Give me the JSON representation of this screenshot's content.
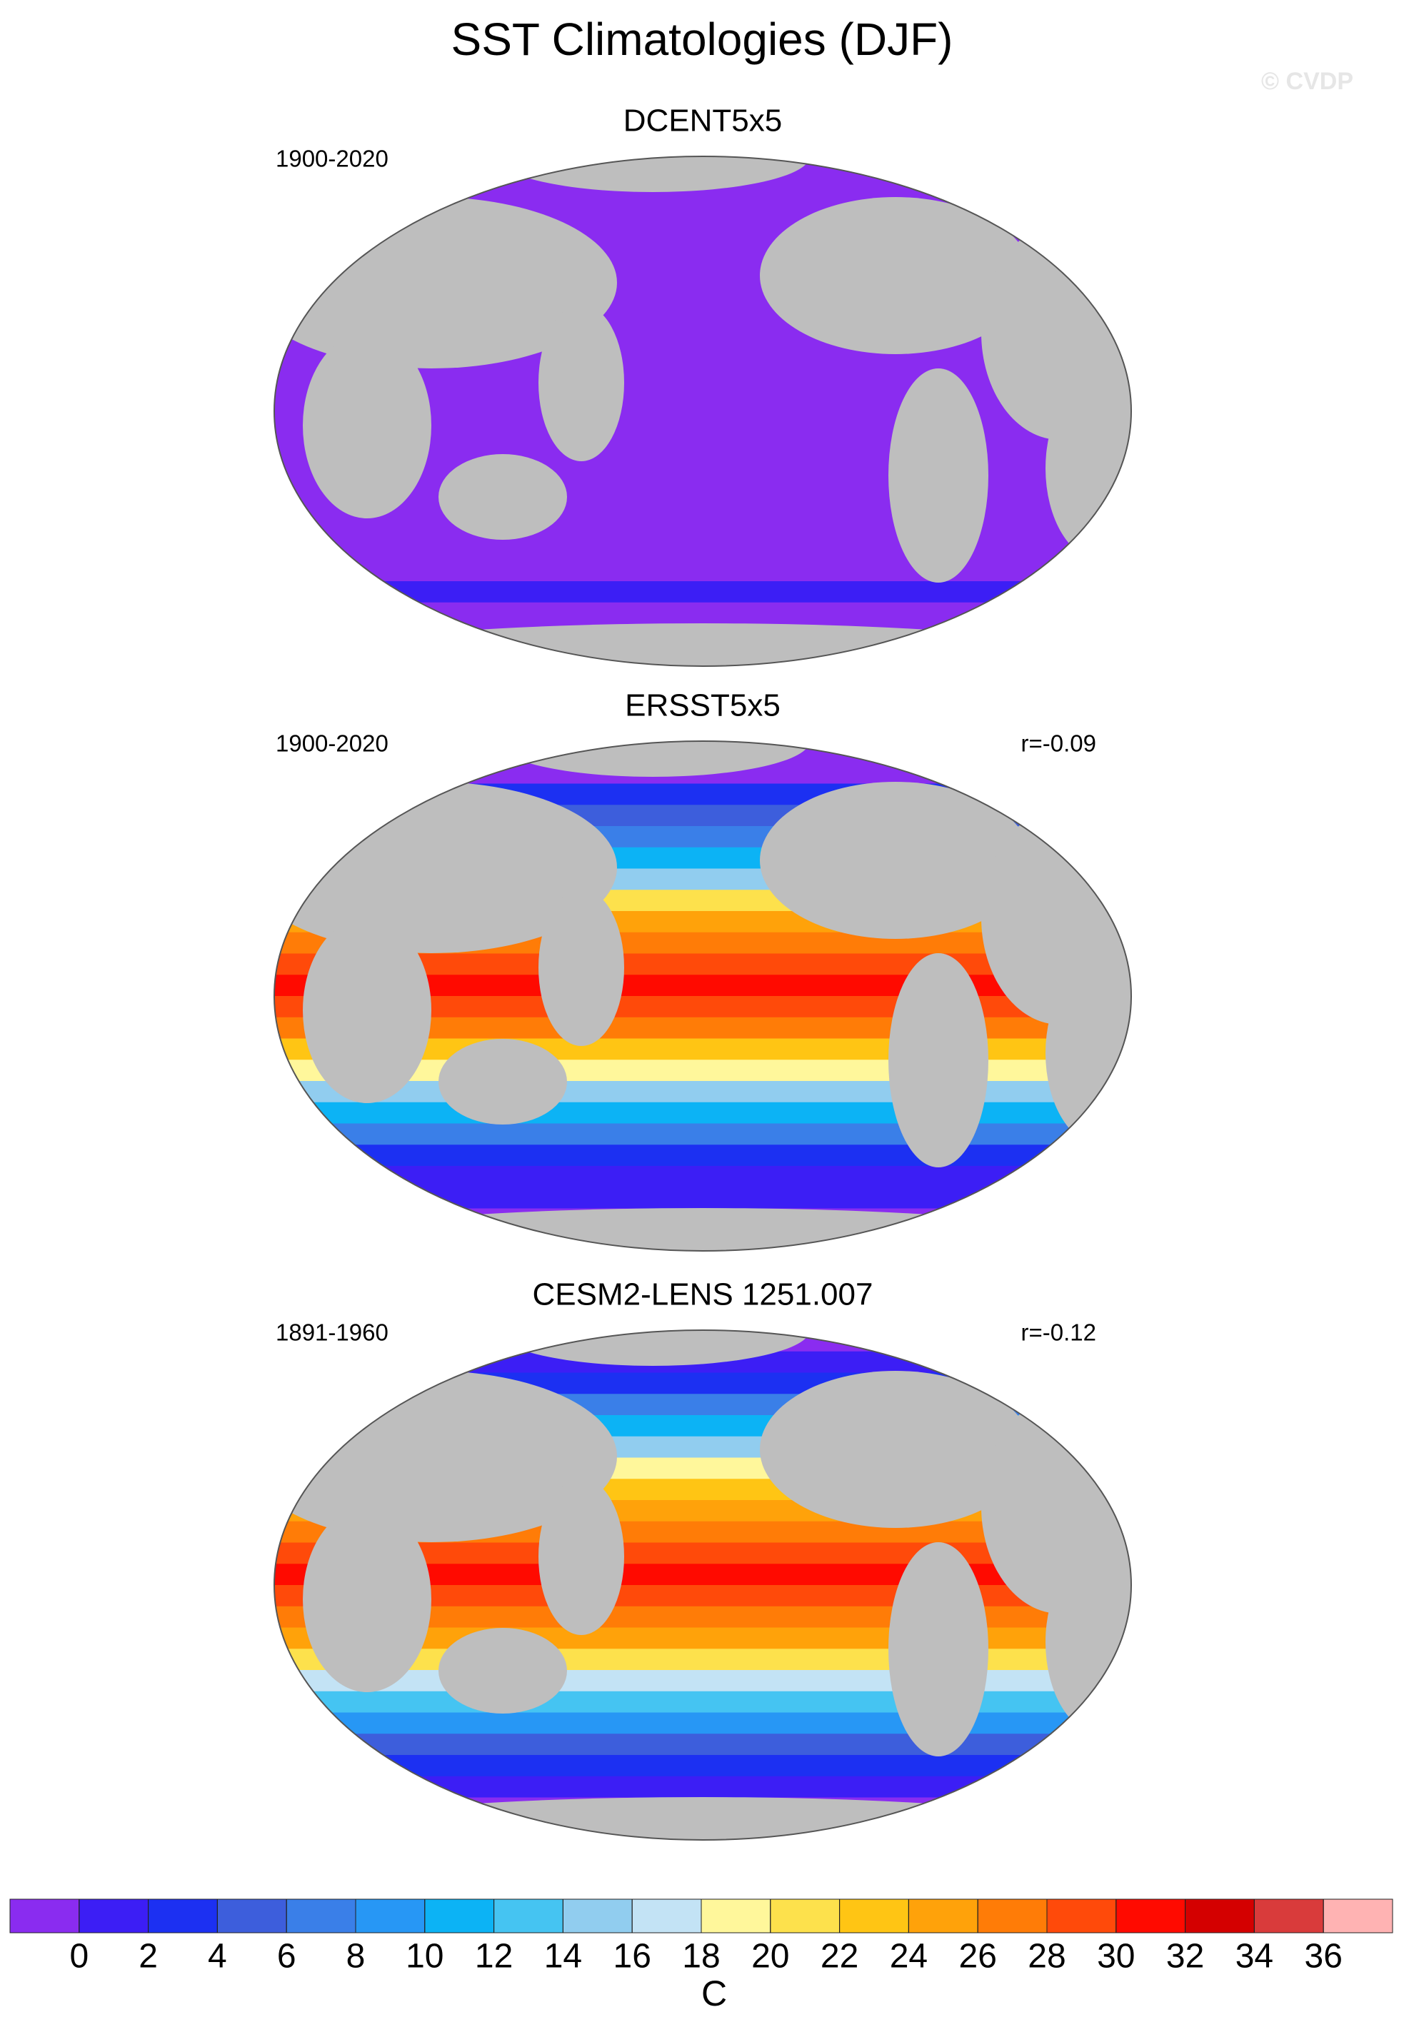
{
  "title": "SST Climatologies (DJF)",
  "watermark": "© CVDP",
  "panels": [
    {
      "title": "DCENT5x5",
      "period": "1900-2020"
    },
    {
      "title": "ERSST5x5",
      "period": "1900-2020",
      "correlation": "r=-0.09"
    },
    {
      "title": "CESM2-LENS 1251.007",
      "period": "1891-1960",
      "correlation": "r=-0.12"
    }
  ],
  "colorbar": {
    "label": "C",
    "colors": [
      "#8a2cf0",
      "#3c1ef5",
      "#1c30f2",
      "#3d5edc",
      "#3a7fe8",
      "#2797f5",
      "#0cb3f5",
      "#45c4f2",
      "#91cdef",
      "#c3e3f5",
      "#fff79b",
      "#fde14c",
      "#ffc514",
      "#ffa20a",
      "#ff7c07",
      "#ff4a0a",
      "#ff0a00",
      "#d40000",
      "#d93b3b",
      "#ffb3b3"
    ],
    "ticks": [
      0,
      2,
      4,
      6,
      8,
      10,
      12,
      14,
      16,
      18,
      20,
      22,
      24,
      26,
      28,
      30,
      32,
      34,
      36
    ]
  }
}
